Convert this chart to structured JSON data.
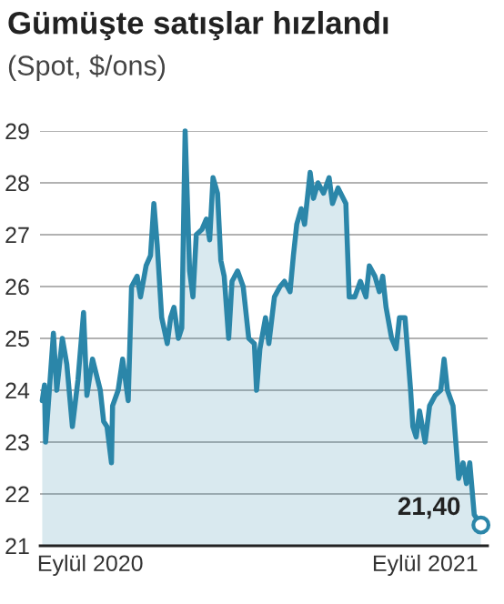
{
  "chart_data": {
    "type": "area",
    "title": "Gümüşte satışlar hızlandı",
    "subtitle": "(Spot, $/ons)",
    "x": [
      "2020-09-01",
      "2020-09-03",
      "2020-09-04",
      "2020-09-08",
      "2020-09-11",
      "2020-09-14",
      "2020-09-19",
      "2020-09-23",
      "2020-09-28",
      "2020-10-03",
      "2020-10-08",
      "2020-10-11",
      "2020-10-16",
      "2020-10-23",
      "2020-10-26",
      "2020-10-29",
      "2020-11-02",
      "2020-11-03",
      "2020-11-08",
      "2020-11-12",
      "2020-11-17",
      "2020-11-20",
      "2020-11-25",
      "2020-11-28",
      "2020-12-03",
      "2020-12-07",
      "2020-12-10",
      "2020-12-13",
      "2020-12-17",
      "2020-12-22",
      "2020-12-25",
      "2020-12-28",
      "2021-01-01",
      "2021-01-04",
      "2021-01-07",
      "2021-01-11",
      "2021-01-14",
      "2021-01-17",
      "2021-01-22",
      "2021-01-26",
      "2021-01-29",
      "2021-02-01",
      "2021-02-05",
      "2021-02-08",
      "2021-02-11",
      "2021-02-15",
      "2021-02-18",
      "2021-02-23",
      "2021-02-28",
      "2021-03-05",
      "2021-03-10",
      "2021-03-12",
      "2021-03-15",
      "2021-03-20",
      "2021-03-23",
      "2021-03-28",
      "2021-04-02",
      "2021-04-06",
      "2021-04-11",
      "2021-04-14",
      "2021-04-17",
      "2021-04-21",
      "2021-04-24",
      "2021-04-29",
      "2021-05-02",
      "2021-05-06",
      "2021-05-11",
      "2021-05-16",
      "2021-05-19",
      "2021-05-24",
      "2021-05-31",
      "2021-06-03",
      "2021-06-08",
      "2021-06-13",
      "2021-06-18",
      "2021-06-21",
      "2021-06-26",
      "2021-06-30",
      "2021-07-03",
      "2021-07-06",
      "2021-07-11",
      "2021-07-15",
      "2021-07-18",
      "2021-07-23",
      "2021-07-28",
      "2021-07-30",
      "2021-08-02",
      "2021-08-05",
      "2021-08-10",
      "2021-08-14",
      "2021-08-19",
      "2021-08-24",
      "2021-08-27",
      "2021-08-30",
      "2021-09-04",
      "2021-09-09",
      "2021-09-13",
      "2021-09-16",
      "2021-09-19",
      "2021-09-23",
      "2021-09-29"
    ],
    "series": [
      {
        "color": "#2b86a9",
        "values": [
          23.8,
          24.1,
          23.0,
          24.2,
          25.1,
          24.0,
          25.0,
          24.5,
          23.3,
          24.2,
          25.5,
          23.9,
          24.6,
          24.0,
          23.4,
          23.3,
          22.6,
          23.7,
          24.0,
          24.6,
          23.8,
          26.0,
          26.2,
          25.8,
          26.4,
          26.6,
          27.6,
          26.8,
          25.4,
          24.9,
          25.4,
          25.6,
          25.0,
          25.2,
          29.0,
          26.3,
          25.8,
          27.0,
          27.1,
          27.3,
          26.9,
          28.1,
          27.8,
          26.5,
          26.2,
          25.0,
          26.1,
          26.3,
          26.0,
          25.0,
          24.9,
          24.0,
          24.8,
          25.4,
          24.9,
          25.8,
          26.0,
          26.1,
          25.9,
          26.6,
          27.2,
          27.5,
          27.2,
          28.2,
          27.7,
          28.0,
          27.8,
          28.1,
          27.6,
          27.9,
          27.6,
          25.8,
          25.8,
          26.1,
          25.8,
          26.4,
          26.2,
          25.9,
          26.2,
          25.6,
          25.0,
          24.8,
          25.4,
          25.4,
          24.0,
          23.3,
          23.1,
          23.6,
          23.0,
          23.7,
          23.9,
          24.0,
          24.6,
          24.0,
          23.7,
          22.3,
          22.6,
          22.2,
          22.6,
          21.6,
          21.4
        ]
      }
    ],
    "xlim": [
      "2020-08-30",
      "2021-10-05"
    ],
    "xticks": [
      {
        "value": "2020-10-14",
        "label": "Eylül 2020"
      },
      {
        "value": "2021-08-10",
        "label": "Eylül 2021"
      }
    ],
    "ylim": [
      21,
      29
    ],
    "yticks": [
      21,
      22,
      23,
      24,
      25,
      26,
      27,
      28,
      29
    ],
    "grid": "y",
    "annotations": [
      {
        "text": "21,40",
        "x": "2021-09-29",
        "y": 21.4
      }
    ]
  }
}
